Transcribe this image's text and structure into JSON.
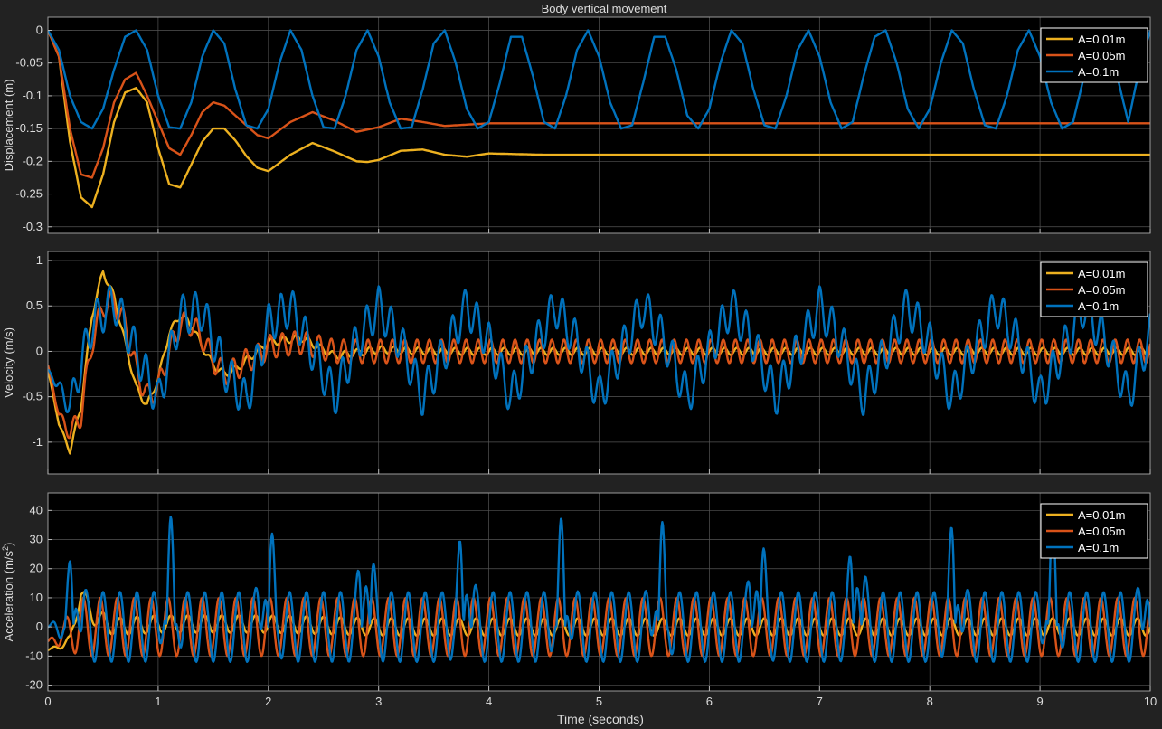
{
  "figure": {
    "title": "Body vertical movement",
    "xlabel": "Time (seconds)",
    "xlim": [
      0,
      10
    ],
    "xticks": [
      0,
      1,
      2,
      3,
      4,
      5,
      6,
      7,
      8,
      9,
      10
    ]
  },
  "colors": {
    "background": "#222222",
    "axes": "#000000",
    "grid": "#555555",
    "text": "#dddddd",
    "series": [
      "#EDB120",
      "#D95319",
      "#0072BD"
    ]
  },
  "legend": {
    "location": "top-right",
    "entries": [
      "A=0.01m",
      "A=0.05m",
      "A=0.1m"
    ]
  },
  "chart_data": [
    {
      "type": "line",
      "id": "displacement",
      "ylabel": "Displacement (m)",
      "ylim": [
        -0.31,
        0.02
      ],
      "yticks": [
        0,
        -0.05,
        -0.1,
        -0.15,
        -0.2,
        -0.25,
        -0.3
      ],
      "ytick_labels": [
        "0",
        "-0.05",
        "-0.1",
        "-0.15",
        "-0.2",
        "-0.25",
        "-0.3"
      ],
      "series": [
        {
          "name": "A=0.01m",
          "t": [
            0,
            0.1,
            0.2,
            0.3,
            0.4,
            0.5,
            0.6,
            0.7,
            0.8,
            0.9,
            1.0,
            1.1,
            1.2,
            1.3,
            1.4,
            1.5,
            1.6,
            1.7,
            1.8,
            1.9,
            2.0,
            2.2,
            2.4,
            2.6,
            2.8,
            2.9,
            3.0,
            3.2,
            3.4,
            3.6,
            3.8,
            4.0,
            4.5,
            5,
            6,
            7,
            8,
            9,
            10
          ],
          "values": [
            0,
            -0.04,
            -0.17,
            -0.255,
            -0.27,
            -0.22,
            -0.14,
            -0.095,
            -0.088,
            -0.11,
            -0.18,
            -0.235,
            -0.24,
            -0.205,
            -0.17,
            -0.15,
            -0.15,
            -0.168,
            -0.192,
            -0.21,
            -0.215,
            -0.19,
            -0.172,
            -0.185,
            -0.2,
            -0.201,
            -0.198,
            -0.184,
            -0.182,
            -0.19,
            -0.193,
            -0.188,
            -0.19,
            -0.19,
            -0.19,
            -0.19,
            -0.19,
            -0.19,
            -0.19
          ]
        },
        {
          "name": "A=0.05m",
          "t": [
            0,
            0.1,
            0.2,
            0.3,
            0.4,
            0.5,
            0.6,
            0.7,
            0.8,
            0.9,
            1.0,
            1.1,
            1.2,
            1.3,
            1.4,
            1.5,
            1.6,
            1.7,
            1.8,
            1.9,
            2.0,
            2.2,
            2.4,
            2.6,
            2.8,
            3.0,
            3.2,
            3.4,
            3.6,
            4,
            5,
            6,
            7,
            8,
            9,
            10
          ],
          "values": [
            0,
            -0.04,
            -0.15,
            -0.22,
            -0.225,
            -0.18,
            -0.11,
            -0.075,
            -0.065,
            -0.1,
            -0.14,
            -0.18,
            -0.19,
            -0.16,
            -0.125,
            -0.11,
            -0.115,
            -0.13,
            -0.145,
            -0.16,
            -0.165,
            -0.14,
            -0.125,
            -0.138,
            -0.155,
            -0.148,
            -0.135,
            -0.14,
            -0.146,
            -0.142,
            -0.142,
            -0.142,
            -0.142,
            -0.142,
            -0.142,
            -0.142
          ]
        },
        {
          "name": "A=0.1m",
          "t": [
            0,
            0.1,
            0.2,
            0.3,
            0.4,
            0.5,
            0.6,
            0.7,
            0.8,
            0.9,
            1.0,
            1.1,
            1.2,
            1.3,
            1.4,
            1.5,
            1.6,
            1.7,
            1.8,
            1.9,
            2.0,
            2.1,
            2.2,
            2.3,
            2.4,
            2.5,
            2.6,
            2.7,
            2.8,
            2.9,
            3.0,
            3.1,
            3.2,
            3.3,
            3.4,
            3.5,
            3.6,
            3.7,
            3.8,
            3.9,
            4.0,
            4.1,
            4.2,
            4.3,
            4.4,
            4.5,
            4.6,
            4.7,
            4.8,
            4.9,
            5.0,
            5.1,
            5.2,
            5.3,
            5.4,
            5.5,
            5.6,
            5.7,
            5.8,
            5.9,
            6.0,
            6.1,
            6.2,
            6.3,
            6.4,
            6.5,
            6.6,
            6.7,
            6.8,
            6.9,
            7.0,
            7.1,
            7.2,
            7.3,
            7.4,
            7.5,
            7.6,
            7.7,
            7.8,
            7.9,
            8.0,
            8.1,
            8.2,
            8.3,
            8.4,
            8.5,
            8.6,
            8.7,
            8.8,
            8.9,
            9.0,
            9.1,
            9.2,
            9.3,
            9.4,
            9.5,
            9.6,
            9.7,
            9.8,
            9.9,
            10
          ],
          "values": [
            0,
            -0.03,
            -0.1,
            -0.14,
            -0.15,
            -0.12,
            -0.06,
            -0.01,
            0,
            -0.03,
            -0.1,
            -0.148,
            -0.15,
            -0.11,
            -0.04,
            0,
            -0.02,
            -0.09,
            -0.145,
            -0.15,
            -0.12,
            -0.05,
            0,
            -0.03,
            -0.1,
            -0.148,
            -0.15,
            -0.1,
            -0.03,
            0,
            -0.04,
            -0.11,
            -0.15,
            -0.148,
            -0.09,
            -0.02,
            0,
            -0.05,
            -0.12,
            -0.15,
            -0.14,
            -0.08,
            -0.01,
            -0.01,
            -0.07,
            -0.14,
            -0.15,
            -0.1,
            -0.03,
            0,
            -0.04,
            -0.11,
            -0.15,
            -0.145,
            -0.08,
            -0.01,
            -0.01,
            -0.06,
            -0.13,
            -0.15,
            -0.12,
            -0.05,
            0,
            -0.02,
            -0.09,
            -0.145,
            -0.15,
            -0.1,
            -0.03,
            0,
            -0.04,
            -0.11,
            -0.15,
            -0.14,
            -0.07,
            -0.01,
            0,
            -0.05,
            -0.12,
            -0.15,
            -0.12,
            -0.05,
            0,
            -0.02,
            -0.09,
            -0.145,
            -0.15,
            -0.1,
            -0.03,
            0,
            -0.04,
            -0.11,
            -0.15,
            -0.14,
            -0.07,
            -0.01,
            -0.01,
            -0.07,
            -0.14,
            -0.06,
            0
          ]
        }
      ]
    },
    {
      "type": "line",
      "id": "velocity",
      "ylabel": "Velocity (m/s)",
      "ylim": [
        -1.35,
        1.1
      ],
      "yticks": [
        1,
        0.5,
        0,
        -0.5,
        -1
      ],
      "ytick_labels": [
        "1",
        "0.5",
        "0",
        "-0.5",
        "-1"
      ],
      "series": [
        {
          "name": "A=0.01m",
          "t": [
            0,
            0.1,
            0.2,
            0.3,
            0.4,
            0.5,
            0.6,
            0.7,
            0.8,
            0.9,
            1.0,
            1.1,
            1.2,
            1.3,
            1.4,
            1.5,
            1.6,
            1.7,
            1.8,
            1.9,
            2.0,
            2.3,
            2.6,
            3.0,
            3.5,
            10
          ],
          "values": [
            -0.2,
            -0.8,
            -1.1,
            -0.6,
            0.4,
            0.88,
            0.6,
            0.1,
            -0.4,
            -0.6,
            -0.3,
            0.2,
            0.4,
            0.3,
            0.05,
            -0.15,
            -0.25,
            -0.2,
            -0.1,
            0,
            0.1,
            0.15,
            -0.05,
            0.02,
            0,
            0
          ],
          "ripple": 0.04
        },
        {
          "name": "A=0.05m",
          "t": [
            0,
            0.1,
            0.2,
            0.3,
            0.4,
            0.5,
            0.6,
            0.7,
            0.8,
            0.9,
            1.0,
            1.1,
            1.2,
            1.3,
            1.4,
            1.5,
            1.6,
            1.7,
            1.8,
            1.9,
            2.0,
            2.3,
            2.6,
            3.0,
            10
          ],
          "values": [
            -0.15,
            -0.7,
            -0.9,
            -0.7,
            0.1,
            0.5,
            0.55,
            0.3,
            -0.2,
            -0.5,
            -0.4,
            0,
            0.3,
            0.3,
            0.15,
            -0.1,
            -0.25,
            -0.2,
            -0.1,
            -0.05,
            0.05,
            0.1,
            0,
            0,
            0
          ],
          "ripple": 0.13
        },
        {
          "name": "A=0.1m",
          "t": [
            0,
            0.2,
            0.4,
            0.6,
            0.8,
            1.0,
            1.2,
            1.4,
            1.6,
            1.8,
            2.0,
            2.2,
            2.4,
            2.6,
            2.8,
            3.0,
            3.2,
            3.4,
            3.6,
            3.8,
            4.0,
            4.2,
            4.4,
            4.6,
            4.8,
            5.0,
            5.2,
            5.4,
            5.6,
            5.8,
            6.0,
            6.2,
            6.4,
            6.6,
            6.8,
            7.0,
            7.2,
            7.4,
            7.6,
            7.8,
            8.0,
            8.2,
            8.4,
            8.6,
            8.8,
            9.0,
            9.2,
            9.4,
            9.6,
            9.8,
            10
          ],
          "values": [
            -0.2,
            -0.6,
            0.3,
            0.55,
            0,
            -0.55,
            0.4,
            0.45,
            -0.2,
            -0.55,
            0.3,
            0.5,
            0,
            -0.5,
            0.1,
            0.5,
            0.1,
            -0.5,
            0,
            0.5,
            0.1,
            -0.5,
            0,
            0.5,
            0.1,
            -0.5,
            0,
            0.5,
            0.1,
            -0.5,
            0,
            0.5,
            0.1,
            -0.5,
            0,
            0.5,
            0.1,
            -0.5,
            0,
            0.5,
            0.1,
            -0.5,
            0,
            0.5,
            0.1,
            -0.5,
            0,
            0.5,
            0.1,
            -0.5,
            0.2
          ],
          "ripple": 0.22
        }
      ]
    },
    {
      "type": "line",
      "id": "acceleration",
      "ylabel": "Acceleration (m/s",
      "ylabel_sup": "2",
      "ylabel_close": ")",
      "ylim": [
        -22,
        46
      ],
      "yticks": [
        40,
        30,
        20,
        10,
        0,
        -10,
        -20
      ],
      "ytick_labels": [
        "40",
        "30",
        "20",
        "10",
        "0",
        "-10",
        "-20"
      ],
      "series": [
        {
          "name": "A=0.01m",
          "t": [
            0,
            0.2,
            0.3,
            0.4,
            0.6,
            1.0,
            1.5,
            2.0,
            3.0,
            10
          ],
          "values": [
            -8,
            -5,
            12,
            4,
            0,
            1,
            1,
            1,
            0,
            0
          ],
          "ripple": 3
        },
        {
          "name": "A=0.05m",
          "t": [
            0,
            0.3,
            0.6,
            1.0,
            1.5,
            2.0,
            3.0,
            10
          ],
          "values": [
            -5,
            0,
            0,
            0,
            0,
            0,
            0,
            0
          ],
          "ripple": 10
        },
        {
          "name": "A=0.1m",
          "t": [
            0,
            10
          ],
          "values": [
            0,
            0
          ],
          "ripple": 12,
          "peak": 38
        }
      ]
    }
  ]
}
